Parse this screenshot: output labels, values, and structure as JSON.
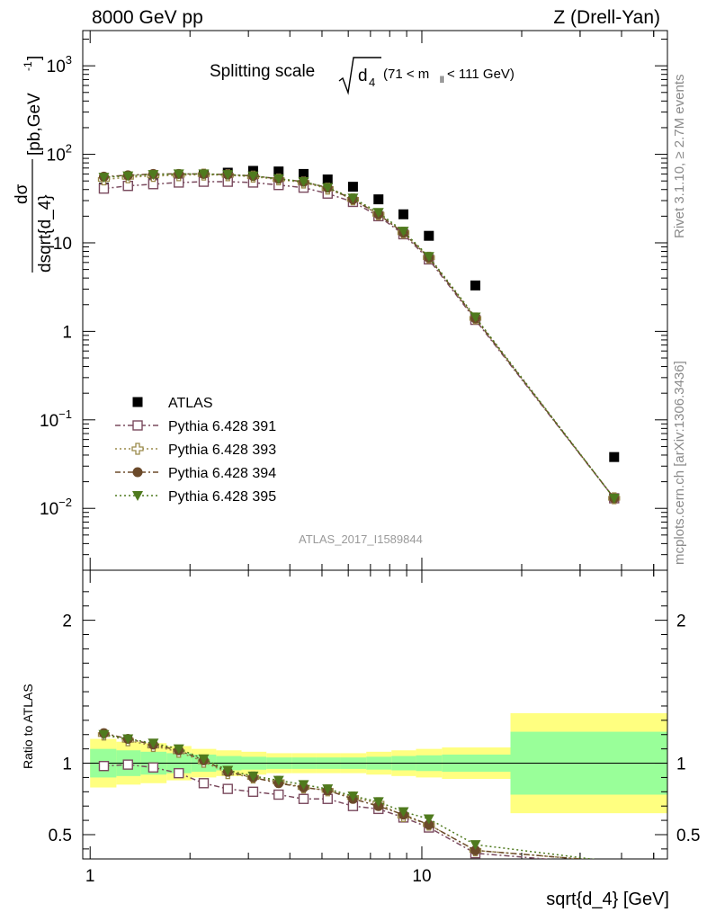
{
  "header": {
    "left": "8000 GeV pp",
    "right": "Z (Drell-Yan)"
  },
  "side_text": {
    "rivet": "Rivet 3.1.10, ≥ 2.7M events",
    "mcplots": "mcplots.cern.ch [arXiv:1306.3436]"
  },
  "analysis_id": "ATLAS_2017_I1589844",
  "chart_data": [
    {
      "type": "scatter",
      "panel": "main",
      "title_parts": {
        "prefix": "Splitting scale",
        "sqrt_var": "d",
        "sqrt_sub": "4",
        "cut_pre": "(71 < m",
        "cut_sub": "ll",
        "cut_post": " < 111 GeV)"
      },
      "ylabel_parts": {
        "num": "dσ",
        "den": "dsqrt{d_4}",
        "unit_pre": "[pb,GeV",
        "unit_sup": "-1",
        "unit_post": "]"
      },
      "xlabel": "sqrt{d_4} [GeV]",
      "x_scale": "log",
      "y_scale": "log",
      "xlim": [
        0.95,
        55
      ],
      "ylim": [
        0.002,
        2500
      ],
      "x_ticks": [
        "1",
        "10"
      ],
      "y_ticks": [
        {
          "value": 0.01,
          "base": "10",
          "exp": "−2"
        },
        {
          "value": 0.1,
          "base": "10",
          "exp": "−1"
        },
        {
          "value": 1,
          "base": "1",
          "exp": ""
        },
        {
          "value": 10,
          "base": "10",
          "exp": ""
        },
        {
          "value": 100,
          "base": "10",
          "exp": "2"
        },
        {
          "value": 1000,
          "base": "10",
          "exp": "3"
        }
      ],
      "x": [
        1.1,
        1.3,
        1.55,
        1.85,
        2.2,
        2.6,
        3.1,
        3.7,
        4.4,
        5.2,
        6.2,
        7.4,
        8.8,
        10.5,
        14.5,
        38
      ],
      "legend_placement": "lower-left",
      "series": [
        {
          "name": "ATLAS",
          "marker": "square-filled",
          "color": "#000000",
          "values": [
            42,
            44,
            47,
            52,
            58,
            62,
            65,
            64,
            60,
            52,
            43,
            31,
            21,
            12,
            3.3,
            0.038
          ]
        },
        {
          "name": "Pythia 6.428 391",
          "marker": "square-open",
          "color": "#7a4a5e",
          "dash": "6,3,2,3",
          "values": [
            41,
            44,
            46,
            48,
            49,
            49,
            48,
            45,
            42,
            36,
            29,
            20,
            12.5,
            6.5,
            1.35,
            0.013
          ]
        },
        {
          "name": "Pythia 6.428 393",
          "marker": "cross-open",
          "color": "#9a8a4a",
          "dash": "2,3",
          "values": [
            52,
            55,
            57,
            58,
            59,
            58,
            56,
            52,
            48,
            41,
            31,
            21,
            13,
            6.8,
            1.4,
            0.013
          ]
        },
        {
          "name": "Pythia 6.428 394",
          "marker": "circle-filled",
          "color": "#6b4a2a",
          "dash": "6,3,2,3",
          "values": [
            56,
            58,
            60,
            60,
            60,
            59,
            57,
            53,
            49,
            42,
            31,
            21,
            13,
            6.8,
            1.4,
            0.013
          ]
        },
        {
          "name": "Pythia 6.428 395",
          "marker": "triangle-down-filled",
          "color": "#4f7a1e",
          "dash": "2,3",
          "values": [
            55,
            57,
            59,
            60,
            60,
            59,
            57,
            53,
            49,
            42,
            32,
            22,
            13.5,
            7,
            1.45,
            0.013
          ]
        }
      ]
    },
    {
      "type": "scatter",
      "panel": "ratio",
      "ylabel": "Ratio to ATLAS",
      "xlabel": "sqrt{d_4} [GeV]",
      "x_scale": "log",
      "ylim": [
        0.33,
        2.35
      ],
      "y_ticks": [
        "0.5",
        "1",
        "2"
      ],
      "bin_edges": [
        1.0,
        1.2,
        1.42,
        1.7,
        2.02,
        2.4,
        2.86,
        3.4,
        4.05,
        4.8,
        5.7,
        6.8,
        8.1,
        9.6,
        11.5,
        18.5,
        55
      ],
      "band_stat": [
        0.1,
        0.09,
        0.08,
        0.07,
        0.06,
        0.05,
        0.045,
        0.04,
        0.04,
        0.04,
        0.04,
        0.045,
        0.05,
        0.055,
        0.06,
        0.22
      ],
      "band_total": [
        0.17,
        0.15,
        0.14,
        0.12,
        0.1,
        0.09,
        0.08,
        0.07,
        0.07,
        0.07,
        0.07,
        0.08,
        0.09,
        0.1,
        0.11,
        0.35
      ],
      "x": [
        1.1,
        1.3,
        1.55,
        1.85,
        2.2,
        2.6,
        3.1,
        3.7,
        4.4,
        5.2,
        6.2,
        7.4,
        8.8,
        10.5,
        14.5,
        38
      ],
      "series": [
        {
          "name": "Pythia 6.428 391",
          "values": [
            0.98,
            0.99,
            0.97,
            0.93,
            0.86,
            0.82,
            0.8,
            0.78,
            0.75,
            0.75,
            0.7,
            0.68,
            0.62,
            0.55,
            0.37,
            0.29
          ]
        },
        {
          "name": "Pythia 6.428 393",
          "values": [
            1.2,
            1.16,
            1.12,
            1.08,
            1.01,
            0.93,
            0.9,
            0.87,
            0.83,
            0.81,
            0.76,
            0.72,
            0.63,
            0.57,
            0.39,
            0.31
          ]
        },
        {
          "name": "Pythia 6.428 394",
          "values": [
            1.21,
            1.17,
            1.13,
            1.09,
            1.02,
            0.94,
            0.9,
            0.86,
            0.83,
            0.81,
            0.75,
            0.7,
            0.64,
            0.57,
            0.39,
            0.31
          ]
        },
        {
          "name": "Pythia 6.428 395",
          "values": [
            1.2,
            1.17,
            1.14,
            1.1,
            1.03,
            0.95,
            0.91,
            0.88,
            0.85,
            0.82,
            0.77,
            0.73,
            0.66,
            0.61,
            0.43,
            0.31
          ]
        }
      ]
    }
  ]
}
